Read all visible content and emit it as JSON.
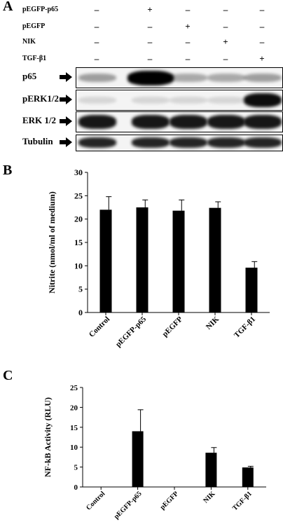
{
  "panel_a": {
    "letter": "A",
    "treatments": [
      {
        "name": "pEGFP-p65",
        "marks": [
          "–",
          "+",
          "–",
          "–",
          "–"
        ]
      },
      {
        "name": "pEGFP",
        "marks": [
          "–",
          "–",
          "+",
          "–",
          "–"
        ]
      },
      {
        "name": "NIK",
        "marks": [
          "–",
          "–",
          "–",
          "+",
          "–"
        ]
      },
      {
        "name": "TGF-β1",
        "marks": [
          "–",
          "–",
          "–",
          "–",
          "+"
        ]
      }
    ],
    "blots": [
      {
        "label": "p65",
        "band_intensity": [
          0.35,
          1.0,
          0.3,
          0.3,
          0.35
        ]
      },
      {
        "label": "pERK1/2",
        "band_intensity": [
          0.12,
          0.12,
          0.12,
          0.12,
          0.95
        ]
      },
      {
        "label": "ERK 1/2",
        "band_intensity": [
          0.9,
          0.9,
          0.9,
          0.9,
          0.9
        ]
      },
      {
        "label": "Tubulin",
        "band_intensity": [
          0.85,
          0.85,
          0.85,
          0.85,
          0.85
        ]
      }
    ]
  },
  "chart_data": [
    {
      "panel": "B",
      "type": "bar",
      "categories": [
        "Control",
        "pEGFP-p65",
        "pEGFP",
        "NIK",
        "TGF-β1"
      ],
      "values": [
        22,
        22.5,
        21.8,
        22.4,
        9.6
      ],
      "errors": [
        2.8,
        1.6,
        2.3,
        1.3,
        1.3
      ],
      "ylabel": "Nitrite (nmol/ml of medium)",
      "ylim": [
        0,
        30
      ],
      "yticks": [
        0,
        5,
        10,
        15,
        20,
        25,
        30
      ],
      "color": "#000000"
    },
    {
      "panel": "C",
      "type": "bar",
      "categories": [
        "Control",
        "pEGFP-p65",
        "pEGFP",
        "NIK",
        "TGF-β1"
      ],
      "values": [
        0.05,
        14,
        0.05,
        8.6,
        4.9
      ],
      "errors": [
        0,
        5.4,
        0,
        1.3,
        0.3
      ],
      "ylabel": "NF-kB Activity (RLU)",
      "ylim": [
        0,
        25
      ],
      "yticks": [
        0,
        5,
        10,
        15,
        20,
        25
      ],
      "color": "#000000"
    }
  ]
}
